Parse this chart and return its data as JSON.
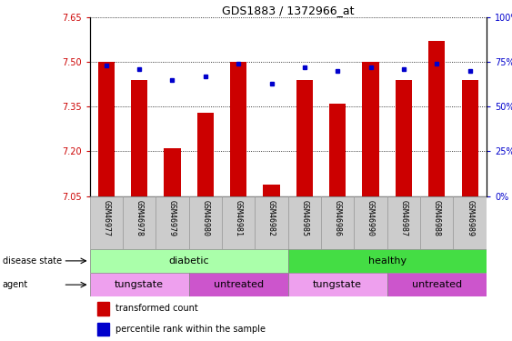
{
  "title": "GDS1883 / 1372966_at",
  "samples": [
    "GSM46977",
    "GSM46978",
    "GSM46979",
    "GSM46980",
    "GSM46981",
    "GSM46982",
    "GSM46985",
    "GSM46986",
    "GSM46990",
    "GSM46987",
    "GSM46988",
    "GSM46989"
  ],
  "transformed_count": [
    7.5,
    7.44,
    7.21,
    7.33,
    7.5,
    7.09,
    7.44,
    7.36,
    7.5,
    7.44,
    7.57,
    7.44
  ],
  "percentile_rank": [
    73,
    71,
    65,
    67,
    74,
    63,
    72,
    70,
    72,
    71,
    74,
    70
  ],
  "ylim_left": [
    7.05,
    7.65
  ],
  "ylim_right": [
    0,
    100
  ],
  "yticks_left": [
    7.05,
    7.2,
    7.35,
    7.5,
    7.65
  ],
  "yticks_right": [
    0,
    25,
    50,
    75,
    100
  ],
  "disease_state": [
    {
      "label": "diabetic",
      "start": 0,
      "end": 6,
      "color": "#AAFFAA"
    },
    {
      "label": "healthy",
      "start": 6,
      "end": 12,
      "color": "#44DD44"
    }
  ],
  "agent": [
    {
      "label": "tungstate",
      "start": 0,
      "end": 3,
      "color": "#EEA0EE"
    },
    {
      "label": "untreated",
      "start": 3,
      "end": 6,
      "color": "#CC55CC"
    },
    {
      "label": "tungstate",
      "start": 6,
      "end": 9,
      "color": "#EEA0EE"
    },
    {
      "label": "untreated",
      "start": 9,
      "end": 12,
      "color": "#CC55CC"
    }
  ],
  "bar_color": "#CC0000",
  "dot_color": "#0000CC",
  "bar_width": 0.5,
  "left_axis_color": "#CC0000",
  "right_axis_color": "#0000CC",
  "sample_bg_color": "#CCCCCC",
  "sample_border_color": "#999999"
}
